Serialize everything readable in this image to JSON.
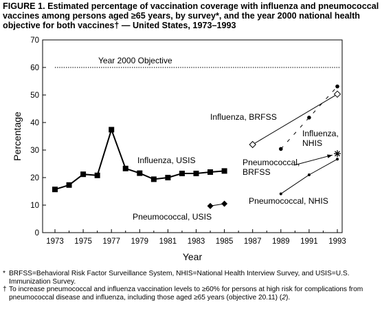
{
  "figure_title": "FIGURE 1. Estimated percentage of vaccination coverage with influenza and pneumococcal vaccines among persons aged ≥65 years, by survey*, and the year 2000 national health objective for both vaccines† — United States, 1973–1993",
  "footnotes": {
    "f1_symbol": "*",
    "f1_text": "BRFSS=Behavioral Risk Factor Surveillance System, NHIS=National Health Interview Survey, and USIS=U.S. Immunization Survey.",
    "f2_symbol": "†",
    "f2_text_a": "To increase pneumococcal and influenza vaccination levels to ≥60% for persons at high risk for complications from pneumococcal disease and influenza, including those aged ≥65 years (objective 20.11) (",
    "f2_ref": "2",
    "f2_text_b": ")."
  },
  "chart_data": {
    "type": "line",
    "xlabel": "Year",
    "ylabel": "Percentage",
    "xlim": [
      1972.5,
      1993.6
    ],
    "ylim": [
      0,
      70
    ],
    "x_ticks": [
      1973,
      1975,
      1977,
      1979,
      1981,
      1983,
      1985,
      1987,
      1989,
      1991,
      1993
    ],
    "x_minor_ticks": [
      1974,
      1976,
      1978,
      1980,
      1982,
      1984,
      1986,
      1988,
      1990,
      1992
    ],
    "y_ticks": [
      0,
      10,
      20,
      30,
      40,
      50,
      60,
      70
    ],
    "grid": false,
    "legend": "none",
    "objective": {
      "label": "Year 2000 Objective",
      "value": 60
    },
    "series": [
      {
        "name": "Influenza, USIS",
        "marker": "square",
        "x": [
          1973,
          1974,
          1975,
          1976,
          1977,
          1978,
          1979,
          1980,
          1981,
          1982,
          1983,
          1984,
          1985
        ],
        "y": [
          15.7,
          17.3,
          21.2,
          20.8,
          37.4,
          23.3,
          21.6,
          19.4,
          20.0,
          21.5,
          21.5,
          22.0,
          22.4
        ]
      },
      {
        "name": "Pneumococcal, USIS",
        "marker": "diamond",
        "x": [
          1984,
          1985
        ],
        "y": [
          9.7,
          10.5
        ]
      },
      {
        "name": "Influenza, BRFSS",
        "marker": "open-diamond",
        "x": [
          1987,
          1993
        ],
        "y": [
          32.0,
          50.3
        ]
      },
      {
        "name": "Influenza, NHIS",
        "marker": "dot",
        "x": [
          1989,
          1991,
          1993
        ],
        "y": [
          30.4,
          41.8,
          53.1
        ]
      },
      {
        "name": "Pneumococcal, BRFSS",
        "marker": "asterisk",
        "x": [
          1993
        ],
        "y": [
          28.7
        ]
      },
      {
        "name": "Pneumococcal, NHIS",
        "marker": "small-dot",
        "x": [
          1989,
          1991,
          1993
        ],
        "y": [
          14.1,
          21.0,
          26.7
        ]
      }
    ]
  }
}
